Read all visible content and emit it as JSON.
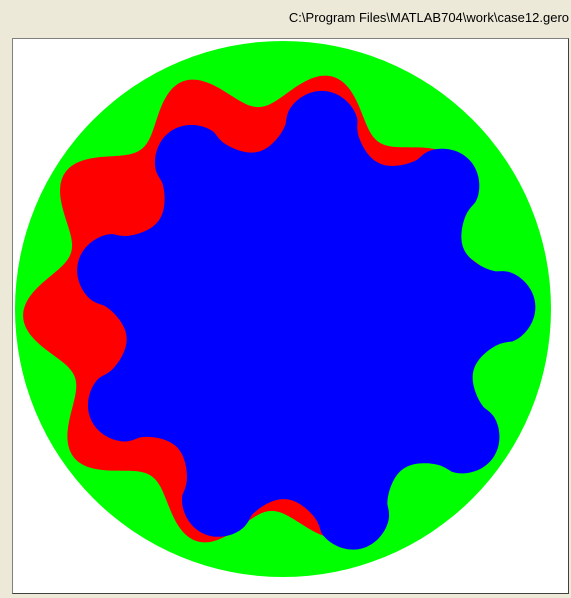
{
  "window": {
    "title": "C:\\Program Files\\MATLAB704\\work\\case12.gero"
  },
  "figure": {
    "colors": {
      "outer_ring": "#00FF00",
      "outer_lobes": "#FF0000",
      "inner_gear": "#0000FF",
      "background": "#FFFFFF"
    },
    "inner_gear_lobes": 9,
    "outer_ring_lobes": 10
  }
}
